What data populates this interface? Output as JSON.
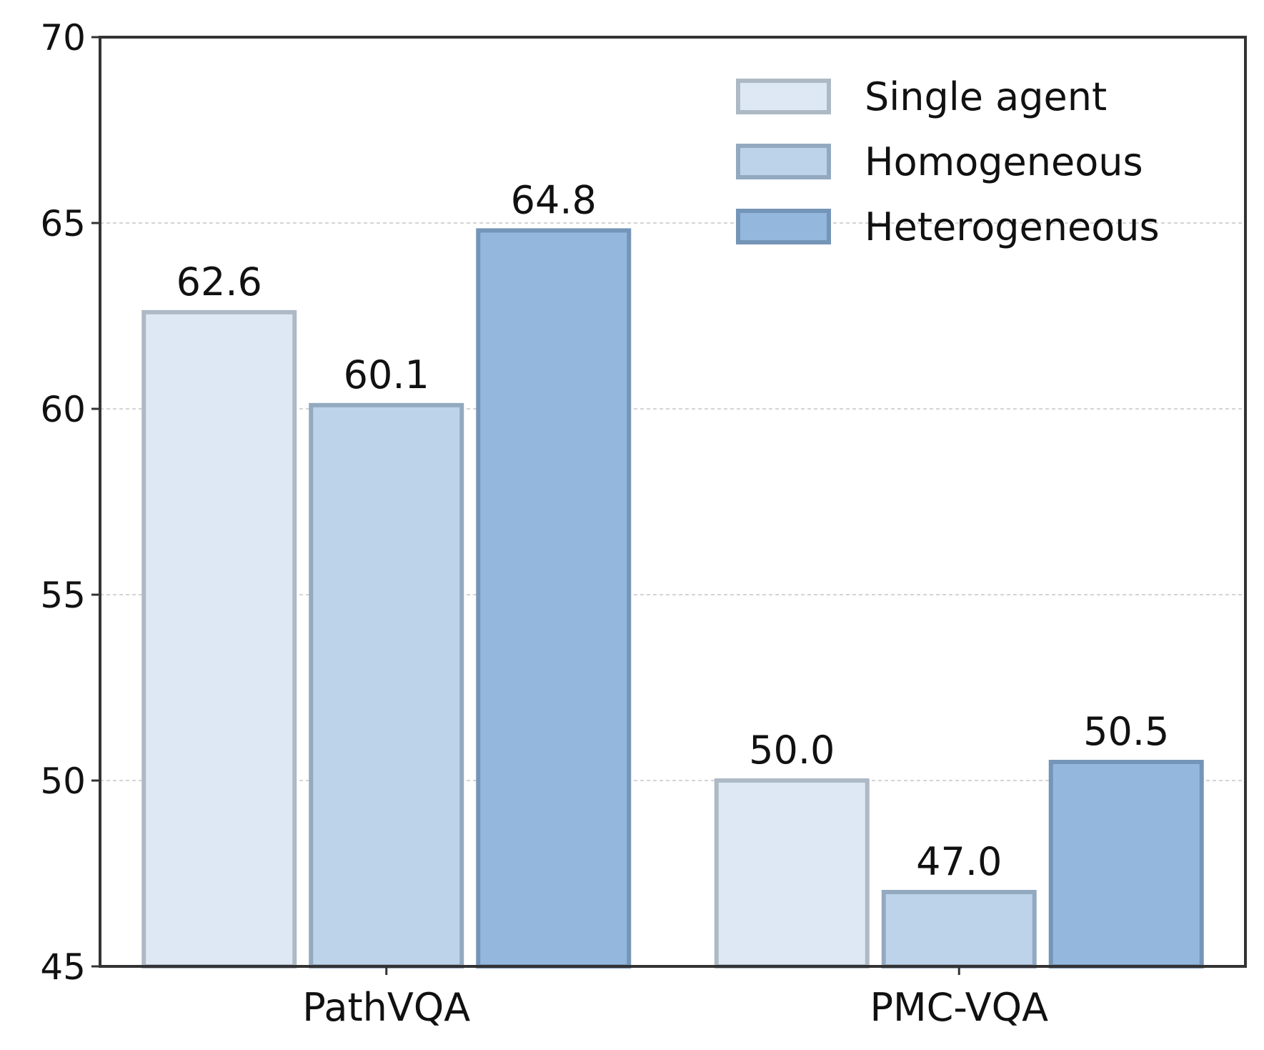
{
  "chart_data": {
    "type": "bar",
    "title": "",
    "xlabel": "",
    "ylabel": "",
    "categories": [
      "PathVQA",
      "PMC-VQA"
    ],
    "series": [
      {
        "name": "Single agent",
        "values": [
          62.6,
          50.0
        ],
        "value_labels": [
          "62.6",
          "50.0"
        ],
        "fill": "#dde8f4",
        "stroke": "#adb9c5"
      },
      {
        "name": "Homogeneous",
        "values": [
          60.1,
          47.0
        ],
        "value_labels": [
          "60.1",
          "47.0"
        ],
        "fill": "#bdd3ea",
        "stroke": "#93a9bf"
      },
      {
        "name": "Heterogeneous",
        "values": [
          64.8,
          50.5
        ],
        "value_labels": [
          "64.8",
          "50.5"
        ],
        "fill": "#94b7dd",
        "stroke": "#7595b8"
      }
    ],
    "ylim": [
      45,
      70
    ],
    "yticks": [
      45,
      50,
      55,
      60,
      65,
      70
    ],
    "ytick_labels": [
      "45",
      "50",
      "55",
      "60",
      "65",
      "70"
    ],
    "grid": "horizontal dashed",
    "legend_position": "top-right",
    "colors": {
      "axis": "#333333",
      "grid": "#bbbbbb"
    }
  }
}
